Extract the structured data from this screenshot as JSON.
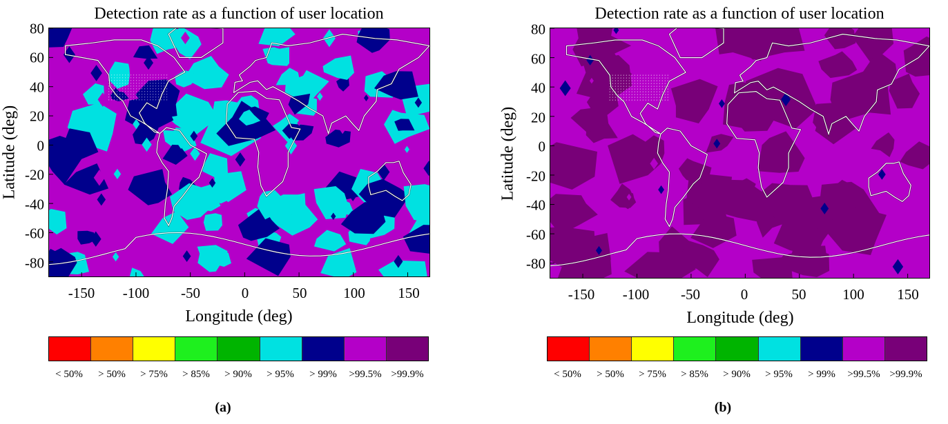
{
  "chart_data": [
    {
      "type": "heatmap",
      "title": "Detection rate as a function of user location",
      "xlabel": "Longitude (deg)",
      "ylabel": "Latitude (deg)",
      "xlim": [
        -180,
        170
      ],
      "ylim": [
        -90,
        80
      ],
      "xticks": [
        "-150",
        "-100",
        "-50",
        "0",
        "50",
        "100",
        "150"
      ],
      "xtick_values": [
        -150,
        -100,
        -50,
        0,
        50,
        100,
        150
      ],
      "yticks": [
        "80",
        "60",
        "40",
        "20",
        "0",
        "-20",
        "-40",
        "-60",
        "-80"
      ],
      "ytick_values": [
        80,
        60,
        40,
        20,
        0,
        -20,
        -40,
        -60,
        -80
      ],
      "colorbar": {
        "labels": [
          "< 50%",
          "> 50%",
          "> 75%",
          "> 85%",
          "> 90%",
          "> 95%",
          "> 99%",
          ">99.5%",
          ">99.9%"
        ],
        "colors": [
          "#ff0000",
          "#ff8000",
          "#ffff00",
          "#1ef01e",
          "#00b400",
          "#00e1e1",
          "#00008c",
          "#b400c8",
          "#780078"
        ]
      },
      "caption": "(a)",
      "dominant_classes": [
        ">99.5%",
        "> 99%",
        "> 95%"
      ]
    },
    {
      "type": "heatmap",
      "title": "Detection rate as a function of user location",
      "xlabel": "Longitude (deg)",
      "ylabel": "Latitude (deg)",
      "xlim": [
        -180,
        170
      ],
      "ylim": [
        -90,
        80
      ],
      "xticks": [
        "-150",
        "-100",
        "-50",
        "0",
        "50",
        "100",
        "150"
      ],
      "xtick_values": [
        -150,
        -100,
        -50,
        0,
        50,
        100,
        150
      ],
      "yticks": [
        "80",
        "60",
        "40",
        "20",
        "0",
        "-20",
        "-40",
        "-60",
        "-80"
      ],
      "ytick_values": [
        80,
        60,
        40,
        20,
        0,
        -20,
        -40,
        -60,
        -80
      ],
      "colorbar": {
        "labels": [
          "< 50%",
          "> 50%",
          "> 75%",
          "> 85%",
          "> 90%",
          "> 95%",
          "> 99%",
          ">99.5%",
          ">99.9%"
        ],
        "colors": [
          "#ff0000",
          "#ff8000",
          "#ffff00",
          "#1ef01e",
          "#00b400",
          "#00e1e1",
          "#00008c",
          "#b400c8",
          "#780078"
        ]
      },
      "caption": "(b)",
      "dominant_classes": [
        ">99.5%",
        ">99.9%"
      ]
    }
  ]
}
